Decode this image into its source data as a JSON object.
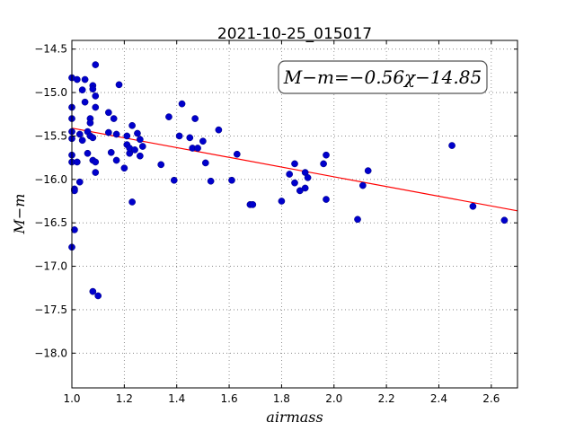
{
  "chart_data": {
    "type": "scatter",
    "title": "2021-10-25_015017",
    "xlabel": "airmass",
    "ylabel": "M−m",
    "xlim": [
      1.0,
      2.7
    ],
    "ylim": [
      -18.4,
      -14.4
    ],
    "y_inverted": true,
    "grid": true,
    "x_ticks": [
      "1.0",
      "1.2",
      "1.4",
      "1.6",
      "1.8",
      "2.0",
      "2.2",
      "2.4",
      "2.6"
    ],
    "x_tick_values": [
      1.0,
      1.2,
      1.4,
      1.6,
      1.8,
      2.0,
      2.2,
      2.4,
      2.6
    ],
    "y_ticks": [
      "−14.5",
      "−15.0",
      "−15.5",
      "−16.0",
      "−16.5",
      "−17.0",
      "−17.5",
      "−18.0"
    ],
    "y_tick_values": [
      -14.5,
      -15.0,
      -15.5,
      -16.0,
      -16.5,
      -17.0,
      -17.5,
      -18.0
    ],
    "annotation": "M−m=−0.56χ−14.85",
    "fit": {
      "slope": -0.56,
      "intercept": -14.85,
      "color": "#ff0000"
    },
    "point_color": "#0000cc",
    "points": [
      [
        1.0,
        -14.83
      ],
      [
        1.0,
        -15.17
      ],
      [
        1.0,
        -15.3
      ],
      [
        1.0,
        -15.45
      ],
      [
        1.0,
        -15.53
      ],
      [
        1.0,
        -15.72
      ],
      [
        1.0,
        -15.8
      ],
      [
        1.0,
        -16.78
      ],
      [
        1.01,
        -16.58
      ],
      [
        1.01,
        -16.11
      ],
      [
        1.01,
        -16.13
      ],
      [
        1.02,
        -15.8
      ],
      [
        1.02,
        -14.85
      ],
      [
        1.03,
        -16.03
      ],
      [
        1.03,
        -15.48
      ],
      [
        1.04,
        -14.97
      ],
      [
        1.04,
        -15.55
      ],
      [
        1.05,
        -14.85
      ],
      [
        1.05,
        -15.11
      ],
      [
        1.06,
        -15.45
      ],
      [
        1.06,
        -15.7
      ],
      [
        1.07,
        -15.3
      ],
      [
        1.07,
        -15.35
      ],
      [
        1.07,
        -15.5
      ],
      [
        1.08,
        -14.92
      ],
      [
        1.08,
        -14.96
      ],
      [
        1.08,
        -15.78
      ],
      [
        1.08,
        -15.52
      ],
      [
        1.09,
        -15.04
      ],
      [
        1.09,
        -15.17
      ],
      [
        1.09,
        -14.68
      ],
      [
        1.09,
        -15.8
      ],
      [
        1.09,
        -15.92
      ],
      [
        1.08,
        -17.29
      ],
      [
        1.1,
        -17.34
      ],
      [
        1.14,
        -15.23
      ],
      [
        1.14,
        -15.46
      ],
      [
        1.15,
        -15.69
      ],
      [
        1.16,
        -15.3
      ],
      [
        1.17,
        -15.48
      ],
      [
        1.17,
        -15.78
      ],
      [
        1.18,
        -14.91
      ],
      [
        1.2,
        -15.87
      ],
      [
        1.21,
        -15.5
      ],
      [
        1.21,
        -15.6
      ],
      [
        1.22,
        -15.7
      ],
      [
        1.22,
        -15.64
      ],
      [
        1.23,
        -16.26
      ],
      [
        1.23,
        -15.38
      ],
      [
        1.24,
        -15.66
      ],
      [
        1.25,
        -15.47
      ],
      [
        1.26,
        -15.54
      ],
      [
        1.26,
        -15.73
      ],
      [
        1.27,
        -15.62
      ],
      [
        1.34,
        -15.83
      ],
      [
        1.37,
        -15.28
      ],
      [
        1.39,
        -16.01
      ],
      [
        1.41,
        -15.5
      ],
      [
        1.42,
        -15.13
      ],
      [
        1.45,
        -15.52
      ],
      [
        1.46,
        -15.64
      ],
      [
        1.47,
        -15.3
      ],
      [
        1.48,
        -15.64
      ],
      [
        1.5,
        -15.56
      ],
      [
        1.51,
        -15.81
      ],
      [
        1.53,
        -16.02
      ],
      [
        1.56,
        -15.43
      ],
      [
        1.61,
        -16.01
      ],
      [
        1.63,
        -15.71
      ],
      [
        1.68,
        -16.29
      ],
      [
        1.69,
        -16.29
      ],
      [
        1.8,
        -16.25
      ],
      [
        1.83,
        -15.94
      ],
      [
        1.85,
        -15.82
      ],
      [
        1.85,
        -16.04
      ],
      [
        1.87,
        -16.13
      ],
      [
        1.89,
        -15.92
      ],
      [
        1.89,
        -16.1
      ],
      [
        1.9,
        -15.98
      ],
      [
        1.96,
        -15.82
      ],
      [
        1.97,
        -15.72
      ],
      [
        1.97,
        -16.23
      ],
      [
        2.09,
        -16.46
      ],
      [
        2.11,
        -16.07
      ],
      [
        2.13,
        -15.9
      ],
      [
        2.45,
        -15.61
      ],
      [
        2.53,
        -16.31
      ],
      [
        2.65,
        -16.47
      ]
    ]
  }
}
